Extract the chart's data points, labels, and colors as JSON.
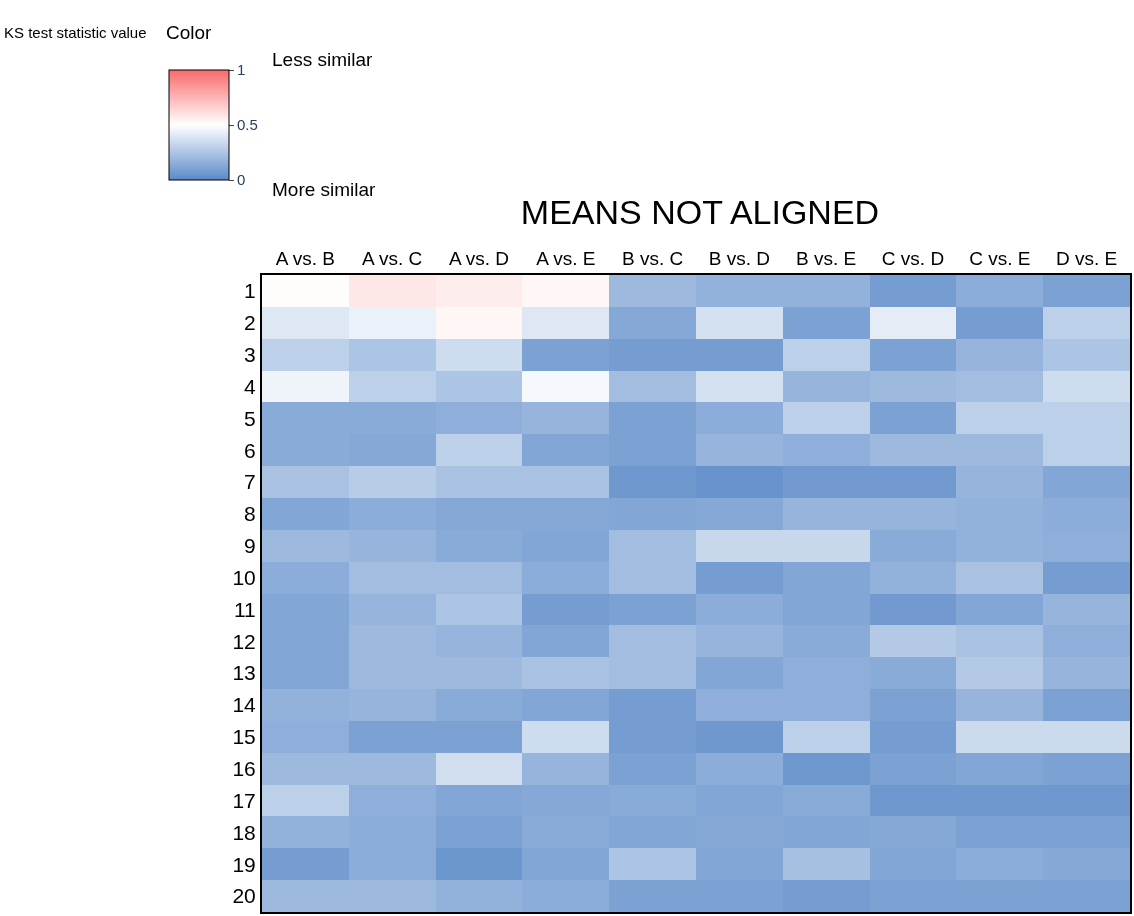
{
  "chart_data": {
    "type": "heatmap",
    "title": "MEANS NOT ALIGNED",
    "clabel": "KS test statistic value",
    "annotations": [
      "Color",
      "More similar",
      "Less similar"
    ],
    "colors": [
      "#5b8ac8",
      "#ffffff",
      "#f96b6b"
    ],
    "clim": [
      0,
      1
    ],
    "cticks": [
      0,
      0.5,
      1
    ],
    "categories": [
      "A vs. B",
      "A vs. C",
      "A vs. D",
      "A vs. E",
      "B vs. C",
      "B vs. D",
      "B vs. E",
      "C vs. D",
      "C vs. E",
      "D vs. E"
    ],
    "y_categories": [
      "1",
      "2",
      "3",
      "4",
      "5",
      "6",
      "7",
      "8",
      "9",
      "10",
      "11",
      "12",
      "13",
      "14",
      "15",
      "16",
      "17",
      "18",
      "19",
      "20"
    ],
    "cells": [
      [
        0.51,
        0.58,
        0.56,
        0.53,
        0.2,
        0.17,
        0.17,
        0.08,
        0.15,
        0.1
      ],
      [
        0.4,
        0.44,
        0.53,
        0.4,
        0.13,
        0.37,
        0.1,
        0.42,
        0.08,
        0.3
      ],
      [
        0.3,
        0.25,
        0.35,
        0.1,
        0.08,
        0.08,
        0.3,
        0.1,
        0.18,
        0.25
      ],
      [
        0.45,
        0.3,
        0.25,
        0.47,
        0.22,
        0.37,
        0.18,
        0.2,
        0.22,
        0.35
      ],
      [
        0.14,
        0.14,
        0.16,
        0.18,
        0.1,
        0.15,
        0.3,
        0.1,
        0.3,
        0.3
      ],
      [
        0.14,
        0.13,
        0.3,
        0.12,
        0.1,
        0.18,
        0.16,
        0.2,
        0.2,
        0.3
      ],
      [
        0.24,
        0.28,
        0.24,
        0.24,
        0.06,
        0.04,
        0.07,
        0.07,
        0.18,
        0.12
      ],
      [
        0.12,
        0.15,
        0.13,
        0.13,
        0.12,
        0.13,
        0.18,
        0.18,
        0.17,
        0.15
      ],
      [
        0.2,
        0.18,
        0.14,
        0.12,
        0.22,
        0.33,
        0.33,
        0.14,
        0.17,
        0.16
      ],
      [
        0.15,
        0.22,
        0.22,
        0.15,
        0.22,
        0.08,
        0.12,
        0.17,
        0.24,
        0.08
      ],
      [
        0.12,
        0.18,
        0.25,
        0.08,
        0.1,
        0.15,
        0.12,
        0.07,
        0.12,
        0.18
      ],
      [
        0.12,
        0.2,
        0.18,
        0.12,
        0.22,
        0.18,
        0.14,
        0.27,
        0.24,
        0.16
      ],
      [
        0.12,
        0.2,
        0.2,
        0.24,
        0.22,
        0.12,
        0.16,
        0.14,
        0.27,
        0.18
      ],
      [
        0.17,
        0.18,
        0.14,
        0.12,
        0.08,
        0.16,
        0.16,
        0.1,
        0.18,
        0.1
      ],
      [
        0.16,
        0.1,
        0.1,
        0.35,
        0.08,
        0.06,
        0.3,
        0.08,
        0.34,
        0.34
      ],
      [
        0.2,
        0.2,
        0.36,
        0.18,
        0.1,
        0.15,
        0.06,
        0.1,
        0.12,
        0.1
      ],
      [
        0.3,
        0.16,
        0.12,
        0.13,
        0.14,
        0.12,
        0.14,
        0.06,
        0.06,
        0.06
      ],
      [
        0.17,
        0.15,
        0.1,
        0.14,
        0.12,
        0.13,
        0.12,
        0.13,
        0.1,
        0.1
      ],
      [
        0.08,
        0.15,
        0.05,
        0.12,
        0.25,
        0.12,
        0.23,
        0.12,
        0.15,
        0.13
      ],
      [
        0.2,
        0.2,
        0.17,
        0.15,
        0.1,
        0.1,
        0.08,
        0.1,
        0.1,
        0.1
      ]
    ]
  }
}
